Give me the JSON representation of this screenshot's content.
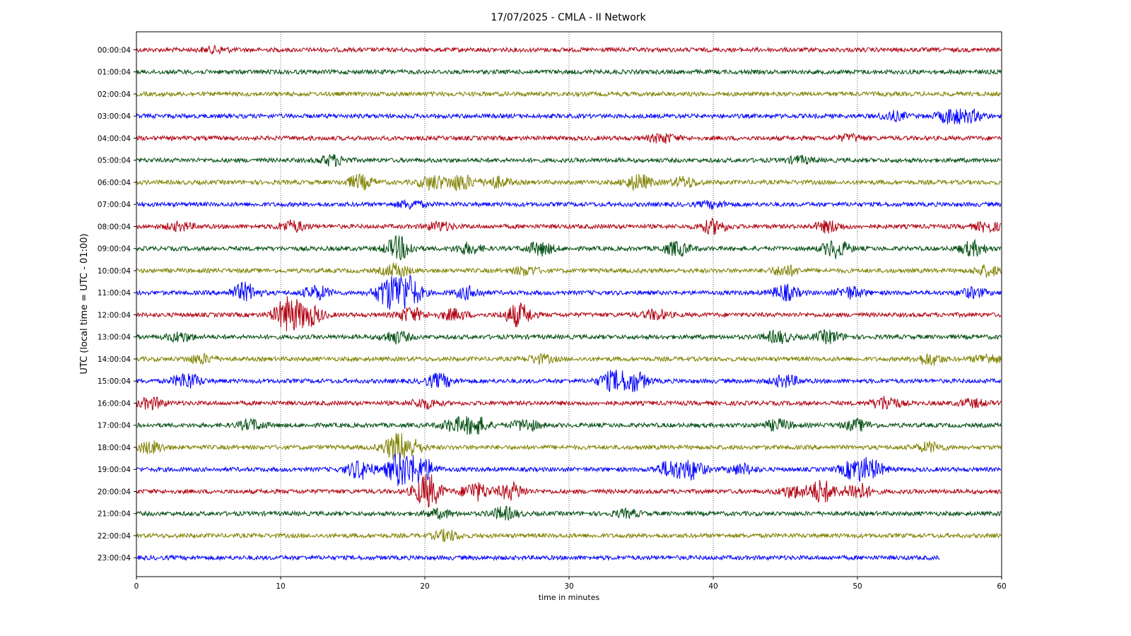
{
  "chart_data": {
    "type": "line",
    "title": "17/07/2025 - CMLA - II Network",
    "xlabel": "time in minutes",
    "ylabel": "UTC (local time = UTC - 01:00)",
    "xlim": [
      0,
      60
    ],
    "x_ticks": [
      0,
      10,
      20,
      30,
      40,
      50,
      60
    ],
    "grid": "vertical dotted",
    "colors": [
      "#b0000f",
      "#004d10",
      "#808000",
      "#0000ff"
    ],
    "rows": [
      {
        "label": "00:00:04",
        "end": 60,
        "bursts": [
          [
            5.5,
            1.2
          ]
        ]
      },
      {
        "label": "01:00:04",
        "end": 60,
        "bursts": []
      },
      {
        "label": "02:00:04",
        "end": 60,
        "bursts": []
      },
      {
        "label": "03:00:04",
        "end": 60,
        "bursts": [
          [
            52.5,
            1.8
          ],
          [
            56.5,
            3.2
          ],
          [
            58,
            2.0
          ]
        ]
      },
      {
        "label": "04:00:04",
        "end": 60,
        "bursts": [
          [
            36.5,
            1.9
          ],
          [
            49.5,
            1.3
          ]
        ]
      },
      {
        "label": "05:00:04",
        "end": 60,
        "bursts": [
          [
            13.6,
            2.2
          ],
          [
            46,
            1.5
          ]
        ]
      },
      {
        "label": "06:00:04",
        "end": 60,
        "bursts": [
          [
            15.5,
            3.0
          ],
          [
            20.5,
            3.0
          ],
          [
            22.5,
            3.5
          ],
          [
            25,
            2.2
          ],
          [
            34.8,
            3.3
          ],
          [
            38,
            2.2
          ]
        ]
      },
      {
        "label": "07:00:04",
        "end": 60,
        "bursts": [
          [
            19,
            1.6
          ],
          [
            40,
            1.3
          ]
        ]
      },
      {
        "label": "08:00:04",
        "end": 60,
        "bursts": [
          [
            3,
            1.7
          ],
          [
            10.8,
            2.4
          ],
          [
            21,
            1.8
          ],
          [
            40,
            3.0
          ],
          [
            48,
            2.4
          ],
          [
            59,
            2.0
          ]
        ]
      },
      {
        "label": "09:00:04",
        "end": 60,
        "bursts": [
          [
            18.2,
            5.0
          ],
          [
            23,
            2.2
          ],
          [
            28,
            2.8
          ],
          [
            37.5,
            3.0
          ],
          [
            48.5,
            3.8
          ],
          [
            58,
            3.0
          ]
        ]
      },
      {
        "label": "10:00:04",
        "end": 60,
        "bursts": [
          [
            18,
            2.8
          ],
          [
            27,
            1.8
          ],
          [
            45,
            2.3
          ],
          [
            59,
            2.2
          ]
        ]
      },
      {
        "label": "11:00:04",
        "end": 60,
        "bursts": [
          [
            7.5,
            4.0
          ],
          [
            12.5,
            3.0
          ],
          [
            17.5,
            6.5
          ],
          [
            18.8,
            7.5
          ],
          [
            23,
            2.5
          ],
          [
            45,
            3.2
          ],
          [
            49.5,
            2.5
          ],
          [
            58,
            2.0
          ]
        ]
      },
      {
        "label": "12:00:04",
        "end": 60,
        "bursts": [
          [
            10.5,
            7.5
          ],
          [
            12,
            4.5
          ],
          [
            19,
            3.0
          ],
          [
            22,
            2.3
          ],
          [
            26.5,
            5.0
          ],
          [
            36,
            2.0
          ]
        ]
      },
      {
        "label": "13:00:04",
        "end": 60,
        "bursts": [
          [
            3,
            2.0
          ],
          [
            18,
            2.5
          ],
          [
            44.5,
            2.5
          ],
          [
            48,
            2.6
          ]
        ]
      },
      {
        "label": "14:00:04",
        "end": 60,
        "bursts": [
          [
            4.5,
            1.9
          ],
          [
            28,
            1.8
          ],
          [
            55,
            2.4
          ],
          [
            59,
            2.0
          ]
        ]
      },
      {
        "label": "15:00:04",
        "end": 60,
        "bursts": [
          [
            3.5,
            3.5
          ],
          [
            21,
            3.0
          ],
          [
            33,
            4.0
          ],
          [
            34.5,
            4.3
          ],
          [
            45,
            2.5
          ]
        ]
      },
      {
        "label": "16:00:04",
        "end": 60,
        "bursts": [
          [
            1,
            2.4
          ],
          [
            20,
            2.0
          ],
          [
            52,
            3.0
          ],
          [
            58,
            1.6
          ]
        ]
      },
      {
        "label": "17:00:04",
        "end": 60,
        "bursts": [
          [
            8,
            2.2
          ],
          [
            22,
            2.5
          ],
          [
            23.5,
            3.8
          ],
          [
            27,
            2.5
          ],
          [
            44.5,
            2.3
          ],
          [
            50,
            2.2
          ]
        ]
      },
      {
        "label": "18:00:04",
        "end": 60,
        "bursts": [
          [
            1,
            2.5
          ],
          [
            18,
            5.0
          ],
          [
            19,
            3.0
          ],
          [
            55,
            2.0
          ]
        ]
      },
      {
        "label": "19:00:04",
        "end": 60,
        "bursts": [
          [
            15.5,
            4.0
          ],
          [
            18.3,
            7.5
          ],
          [
            19.8,
            5.0
          ],
          [
            37,
            3.5
          ],
          [
            38.5,
            4.0
          ],
          [
            42,
            2.2
          ],
          [
            49.8,
            4.2
          ],
          [
            51,
            3.5
          ]
        ]
      },
      {
        "label": "20:00:04",
        "end": 60,
        "bursts": [
          [
            20.2,
            7.5
          ],
          [
            23.5,
            4.0
          ],
          [
            26,
            3.5
          ],
          [
            45.5,
            2.5
          ],
          [
            47.5,
            5.0
          ],
          [
            50,
            3.8
          ]
        ]
      },
      {
        "label": "21:00:04",
        "end": 60,
        "bursts": [
          [
            21,
            1.8
          ],
          [
            25.5,
            2.6
          ],
          [
            34,
            1.5
          ]
        ]
      },
      {
        "label": "22:00:04",
        "end": 60,
        "bursts": [
          [
            21.5,
            2.2
          ]
        ]
      },
      {
        "label": "23:00:04",
        "end": 55.7,
        "bursts": []
      }
    ]
  }
}
